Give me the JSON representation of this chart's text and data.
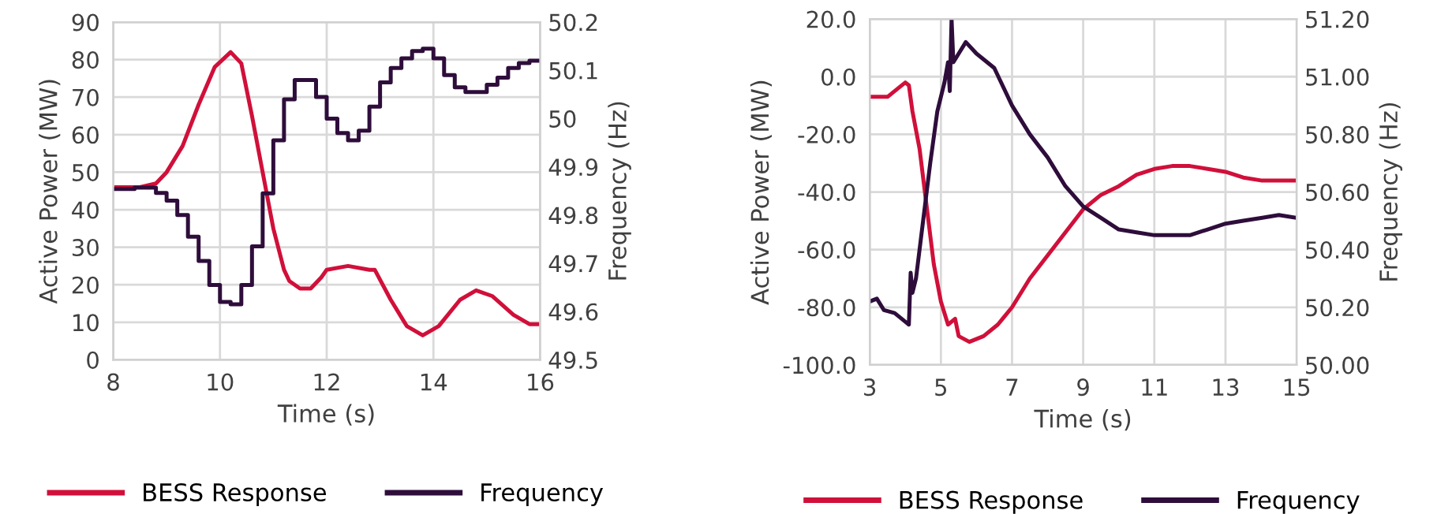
{
  "chart_data": [
    {
      "type": "line",
      "xlabel": "Time (s)",
      "ylabel": "Active Power (MW)",
      "y2label": "Frequency (Hz)",
      "xlim": [
        8,
        16
      ],
      "xticks": [
        8,
        10,
        12,
        14,
        16
      ],
      "ylim": [
        0,
        90
      ],
      "yticks": [
        0,
        10,
        20,
        30,
        40,
        50,
        60,
        70,
        80,
        90
      ],
      "y2lim": [
        49.5,
        50.2
      ],
      "y2ticks": [
        49.5,
        49.6,
        49.7,
        49.8,
        49.9,
        50,
        50.1,
        50.2
      ],
      "grid": true,
      "legend": "bottom",
      "series": [
        {
          "name": "BESS Response",
          "color": "#d0103a",
          "x": [
            8,
            8.5,
            8.8,
            9,
            9.3,
            9.6,
            9.9,
            10.2,
            10.4,
            10.6,
            10.8,
            11,
            11.2,
            11.3,
            11.5,
            11.7,
            11.9,
            12,
            12.4,
            12.8,
            12.9,
            13.2,
            13.5,
            13.8,
            14.1,
            14.5,
            14.8,
            15.1,
            15.5,
            15.8,
            16
          ],
          "values": [
            46,
            46,
            47,
            50,
            57,
            68,
            78,
            82,
            79,
            65,
            50,
            35,
            24,
            21,
            19,
            19,
            22,
            24,
            25,
            24,
            24,
            16,
            9,
            6.5,
            9,
            16,
            18.5,
            17,
            12,
            9.5,
            9.5
          ]
        },
        {
          "name": "Frequency",
          "type": "step",
          "axis": "y2",
          "color": "#2e0d3b",
          "x": [
            8,
            8.4,
            8.8,
            9,
            9.2,
            9.4,
            9.6,
            9.8,
            10,
            10.2,
            10.4,
            10.6,
            10.8,
            11,
            11.2,
            11.4,
            11.8,
            12,
            12.2,
            12.4,
            12.6,
            12.8,
            13,
            13.2,
            13.4,
            13.6,
            13.8,
            14,
            14.2,
            14.4,
            14.6,
            15,
            15.2,
            15.4,
            15.6,
            15.8,
            16
          ],
          "values": [
            49.854,
            49.857,
            49.846,
            49.83,
            49.8,
            49.755,
            49.705,
            49.655,
            49.62,
            49.615,
            49.655,
            49.735,
            49.845,
            49.955,
            50.04,
            50.08,
            50.045,
            50.0,
            49.97,
            49.955,
            49.975,
            50.025,
            50.075,
            50.105,
            50.125,
            50.14,
            50.145,
            50.125,
            50.09,
            50.065,
            50.055,
            50.07,
            50.085,
            50.105,
            50.115,
            50.12,
            50.12
          ]
        }
      ]
    },
    {
      "type": "line",
      "xlabel": "Time (s)",
      "ylabel": "Active Power (MW)",
      "y2label": "Frequency (Hz)",
      "xlim": [
        3,
        15
      ],
      "xticks": [
        3,
        5,
        7,
        9,
        11,
        13,
        15
      ],
      "ylim": [
        -100,
        20
      ],
      "yticks": [
        {
          "value": -100,
          "label": "-100.0"
        },
        {
          "value": -80,
          "label": "-80.0"
        },
        {
          "value": -60,
          "label": "-60.0"
        },
        {
          "value": -40,
          "label": "-40.0"
        },
        {
          "value": -20,
          "label": "-20.0"
        },
        {
          "value": 0,
          "label": "0.0"
        },
        {
          "value": 20,
          "label": "20.0"
        }
      ],
      "y2lim": [
        50.0,
        51.2
      ],
      "y2ticks": [
        {
          "value": 50.0,
          "label": "50.00"
        },
        {
          "value": 50.2,
          "label": "50.20"
        },
        {
          "value": 50.4,
          "label": "50.40"
        },
        {
          "value": 50.6,
          "label": "50.60"
        },
        {
          "value": 50.8,
          "label": "50.80"
        },
        {
          "value": 51.0,
          "label": "51.00"
        },
        {
          "value": 51.2,
          "label": "51.20"
        }
      ],
      "grid": true,
      "legend": "bottom",
      "series": [
        {
          "name": "BESS Response",
          "color": "#d0103a",
          "x": [
            3,
            3.5,
            3.8,
            4.0,
            4.1,
            4.2,
            4.4,
            4.6,
            4.8,
            5.0,
            5.2,
            5.4,
            5.5,
            5.8,
            6.2,
            6.6,
            7.0,
            7.5,
            8,
            8.5,
            9,
            9.5,
            10,
            10.5,
            11,
            11.5,
            12,
            12.5,
            13,
            13.5,
            14,
            15
          ],
          "values": [
            -7,
            -7,
            -4,
            -2,
            -3,
            -12,
            -25,
            -45,
            -65,
            -78,
            -86,
            -84,
            -90,
            -92,
            -90,
            -86,
            -80,
            -70,
            -62,
            -54,
            -46,
            -41,
            -38,
            -34,
            -32,
            -31,
            -31,
            -32,
            -33,
            -35,
            -36,
            -36
          ]
        },
        {
          "name": "Frequency",
          "axis": "y2",
          "color": "#2e0d3b",
          "x": [
            3,
            3.2,
            3.4,
            3.7,
            4.0,
            4.1,
            4.15,
            4.2,
            4.3,
            4.5,
            4.7,
            4.9,
            5.1,
            5.2,
            5.25,
            5.3,
            5.35,
            5.5,
            5.7,
            6.0,
            6.5,
            7.0,
            7.5,
            8.0,
            8.5,
            9.0,
            9.5,
            10.0,
            10.5,
            11,
            11.5,
            12,
            12.5,
            13,
            13.5,
            14,
            14.5,
            15
          ],
          "values": [
            50.22,
            50.23,
            50.19,
            50.18,
            50.15,
            50.14,
            50.32,
            50.25,
            50.3,
            50.5,
            50.7,
            50.88,
            50.98,
            51.05,
            50.95,
            51.2,
            51.05,
            51.08,
            51.12,
            51.08,
            51.03,
            50.9,
            50.8,
            50.72,
            50.62,
            50.55,
            50.51,
            50.47,
            50.46,
            50.45,
            50.45,
            50.45,
            50.47,
            50.49,
            50.5,
            50.51,
            50.52,
            50.51
          ]
        }
      ]
    }
  ]
}
